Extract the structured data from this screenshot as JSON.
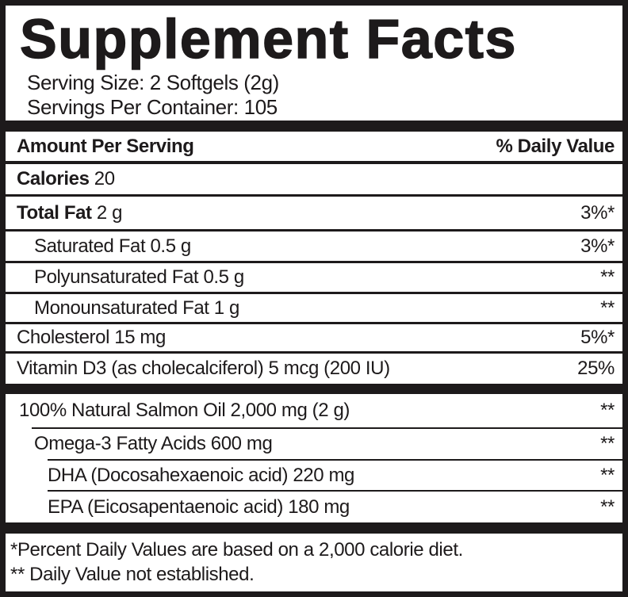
{
  "title": "Supplement Facts",
  "serving": {
    "size": "Serving Size: 2 Softgels (2g)",
    "per_container": "Servings Per Container: 105"
  },
  "columns": {
    "amount_label": "Amount Per Serving",
    "daily_value_label": "% Daily Value"
  },
  "rows": [
    {
      "bold": "Calories",
      "rest": " 20",
      "value": ""
    },
    {
      "bold": "Total Fat",
      "rest": " 2 g",
      "value": "3%*"
    },
    {
      "bold": "",
      "rest": "Saturated Fat 0.5 g",
      "value": "3%*"
    },
    {
      "bold": "",
      "rest": "Polyunsaturated Fat 0.5 g",
      "value": "**"
    },
    {
      "bold": "",
      "rest": "Monounsaturated Fat 1 g",
      "value": "**"
    },
    {
      "bold": "",
      "rest": "Cholesterol 15 mg",
      "value": "5%*"
    },
    {
      "bold": "",
      "rest": "Vitamin D3 (as cholecalciferol) 5 mcg (200 IU)",
      "value": "25%"
    }
  ],
  "blend_rows": [
    {
      "name": "100% Natural Salmon Oil 2,000 mg (2 g)",
      "value": "**"
    },
    {
      "name": "Omega-3 Fatty Acids 600 mg",
      "value": "**"
    },
    {
      "name": "DHA (Docosahexaenoic acid) 220 mg",
      "value": "**"
    },
    {
      "name": "EPA (Eicosapentaenoic acid) 180 mg",
      "value": "**"
    }
  ],
  "footnotes": {
    "line1": "*Percent Daily Values are based on a 2,000 calorie diet.",
    "line2": "** Daily Value not established."
  },
  "colors": {
    "ink": "#1d1a1b",
    "background": "#ffffff"
  }
}
